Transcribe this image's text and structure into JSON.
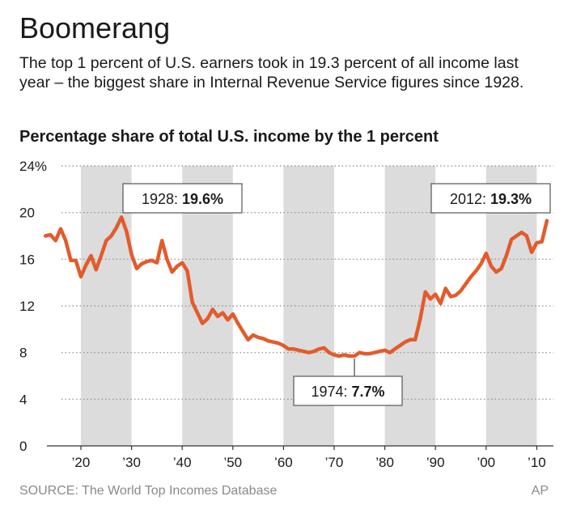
{
  "header": {
    "title": "Boomerang",
    "subtitle": "The top 1 percent of U.S. earners took in 19.3 percent of all income last year – the biggest share in Internal Revenue Service figures since 1928."
  },
  "footer": {
    "source": "SOURCE: The World Top Incomes Database",
    "credit": "AP"
  },
  "colors": {
    "line": "#e35b2c",
    "shade": "#dcdcdc",
    "grid": "#9a9a9a"
  },
  "chart_data": {
    "type": "line",
    "title": "Percentage share of total U.S. income by the 1 percent",
    "ylim": [
      0,
      24
    ],
    "xlim": [
      1913,
      2012
    ],
    "y_ticks": [
      {
        "value": 24,
        "label": "24%"
      },
      {
        "value": 20,
        "label": "20"
      },
      {
        "value": 16,
        "label": "16"
      },
      {
        "value": 12,
        "label": "12"
      },
      {
        "value": 8,
        "label": "8"
      },
      {
        "value": 4,
        "label": "4"
      },
      {
        "value": 0,
        "label": "0"
      }
    ],
    "x_ticks": [
      {
        "value": 1920,
        "label": "’20"
      },
      {
        "value": 1930,
        "label": "’30"
      },
      {
        "value": 1940,
        "label": "’40"
      },
      {
        "value": 1950,
        "label": "’50"
      },
      {
        "value": 1960,
        "label": "’60"
      },
      {
        "value": 1970,
        "label": "’70"
      },
      {
        "value": 1980,
        "label": "’80"
      },
      {
        "value": 1990,
        "label": "’90"
      },
      {
        "value": 2000,
        "label": "’00"
      },
      {
        "value": 2010,
        "label": "’10"
      }
    ],
    "shaded_decades": [
      [
        1920,
        1930
      ],
      [
        1940,
        1950
      ],
      [
        1960,
        1970
      ],
      [
        1980,
        1990
      ],
      [
        2000,
        2010
      ]
    ],
    "grid": true,
    "series": [
      {
        "x": [
          1913,
          1914,
          1915,
          1916,
          1917,
          1918,
          1919,
          1920,
          1921,
          1922,
          1923,
          1924,
          1925,
          1926,
          1927,
          1928,
          1929,
          1930,
          1931,
          1932,
          1933,
          1934,
          1935,
          1936,
          1937,
          1938,
          1939,
          1940,
          1941,
          1942,
          1943,
          1944,
          1945,
          1946,
          1947,
          1948,
          1949,
          1950,
          1951,
          1952,
          1953,
          1954,
          1955,
          1956,
          1957,
          1958,
          1959,
          1960,
          1961,
          1962,
          1963,
          1964,
          1965,
          1966,
          1967,
          1968,
          1969,
          1970,
          1971,
          1972,
          1973,
          1974,
          1975,
          1976,
          1977,
          1978,
          1979,
          1980,
          1981,
          1982,
          1983,
          1984,
          1985,
          1986,
          1987,
          1988,
          1989,
          1990,
          1991,
          1992,
          1993,
          1994,
          1995,
          1996,
          1997,
          1998,
          1999,
          2000,
          2001,
          2002,
          2003,
          2004,
          2005,
          2006,
          2007,
          2008,
          2009,
          2010,
          2011,
          2012
        ],
        "y": [
          18.0,
          18.1,
          17.6,
          18.6,
          17.6,
          15.9,
          15.9,
          14.5,
          15.5,
          16.3,
          15.1,
          16.3,
          17.6,
          18.0,
          18.7,
          19.6,
          18.4,
          16.4,
          15.2,
          15.6,
          15.8,
          15.9,
          15.7,
          17.6,
          16.0,
          14.9,
          15.4,
          15.7,
          15.0,
          12.3,
          11.4,
          10.5,
          10.9,
          11.7,
          11.1,
          11.4,
          10.8,
          11.3,
          10.5,
          9.8,
          9.1,
          9.5,
          9.3,
          9.2,
          9.0,
          8.9,
          8.8,
          8.6,
          8.3,
          8.3,
          8.2,
          8.1,
          8.0,
          8.1,
          8.3,
          8.4,
          8.0,
          7.8,
          7.7,
          7.8,
          7.7,
          7.7,
          8.0,
          7.9,
          7.9,
          8.0,
          8.1,
          8.2,
          8.0,
          8.3,
          8.6,
          8.9,
          9.1,
          9.1,
          10.9,
          13.2,
          12.6,
          13.0,
          12.2,
          13.5,
          12.8,
          12.9,
          13.3,
          13.9,
          14.5,
          15.0,
          15.6,
          16.5,
          15.4,
          14.9,
          15.2,
          16.3,
          17.7,
          18.0,
          18.3,
          18.0,
          16.6,
          17.4,
          17.5,
          19.3
        ]
      }
    ],
    "annotations": [
      {
        "label": "1928: ",
        "value_label": "19.6%",
        "x": 1928,
        "y": 19.6
      },
      {
        "label": "1974: ",
        "value_label": "7.7%",
        "x": 1974,
        "y": 7.7
      },
      {
        "label": "2012: ",
        "value_label": "19.3%",
        "x": 2012,
        "y": 19.3
      }
    ]
  }
}
